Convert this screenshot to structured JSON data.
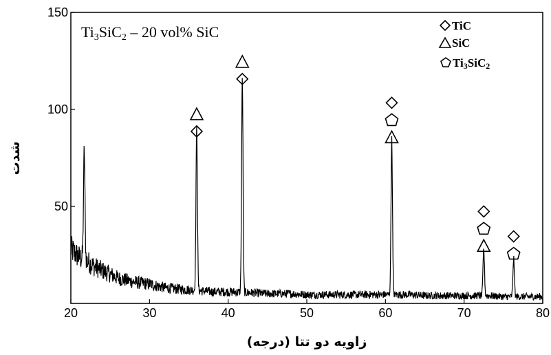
{
  "chart_data": {
    "type": "line",
    "title": "Ti3SiC2 – 20 vol% SiC",
    "title_parts": {
      "a": "Ti",
      "s1": "3",
      "b": "SiC",
      "s2": "2",
      "c": " – 20 vol% SiC"
    },
    "xlabel": "زاویه دو تتا (درجه)",
    "ylabel": "شدت",
    "xlim": [
      20,
      80
    ],
    "ylim": [
      0,
      150
    ],
    "xticks": [
      20,
      30,
      40,
      50,
      60,
      70,
      80
    ],
    "yticks": [
      50,
      100,
      150
    ],
    "grid": false,
    "legend_position": "top-right",
    "legend": [
      {
        "symbol": "diamond",
        "label": "TiC"
      },
      {
        "symbol": "triangle",
        "label": "SiC"
      },
      {
        "symbol": "pentagon",
        "label": "Ti3SiC2",
        "label_parts": {
          "a": "Ti",
          "s1": "3",
          "b": "SiC",
          "s2": "2"
        }
      }
    ],
    "background": {
      "x": [
        20,
        20.5,
        21,
        21.5,
        22,
        23,
        24,
        25,
        26,
        28,
        30,
        32,
        35,
        38,
        40,
        43,
        45,
        48,
        50,
        53,
        55,
        58,
        60,
        63,
        65,
        68,
        70,
        73,
        75,
        78,
        80
      ],
      "y": [
        28,
        26,
        24,
        23,
        22,
        19,
        17,
        15,
        13,
        11,
        10,
        8,
        7,
        6,
        6,
        5.5,
        5,
        5,
        4.5,
        4.5,
        4.5,
        4.5,
        4.5,
        4.5,
        4,
        4,
        4,
        4,
        3.5,
        3.5,
        3.5
      ]
    },
    "peaks": [
      {
        "x": 21.7,
        "height": 56,
        "phases": []
      },
      {
        "x": 36.0,
        "height": 83,
        "phases": [
          "triangle",
          "diamond"
        ]
      },
      {
        "x": 41.8,
        "height": 110,
        "phases": [
          "triangle",
          "diamond"
        ]
      },
      {
        "x": 60.8,
        "height": 80,
        "phases": [
          "diamond",
          "pentagon",
          "triangle"
        ]
      },
      {
        "x": 72.5,
        "height": 24,
        "phases": [
          "diamond",
          "pentagon",
          "triangle"
        ]
      },
      {
        "x": 76.3,
        "height": 20,
        "phases": [
          "diamond",
          "pentagon"
        ]
      }
    ]
  }
}
